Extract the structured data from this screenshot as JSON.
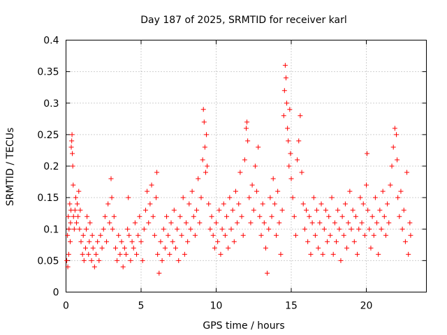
{
  "chart_data": {
    "type": "scatter",
    "title": "Day 187 of 2025, SRMTID for receiver karl",
    "xlabel": "GPS time / hours",
    "ylabel": "SRMTID / TECUs",
    "xlim": [
      0,
      24
    ],
    "ylim": [
      0,
      0.4
    ],
    "x_ticks": [
      0,
      5,
      10,
      15,
      20
    ],
    "x_tick_labels": [
      "0",
      "5",
      "10",
      "15",
      "20"
    ],
    "y_ticks": [
      0,
      0.05,
      0.1,
      0.15,
      0.2,
      0.25,
      0.3,
      0.35,
      0.4
    ],
    "y_tick_labels": [
      "0",
      "0.05",
      "0.1",
      "0.15",
      "0.2",
      "0.25",
      "0.3",
      "0.35",
      "0.4"
    ],
    "grid": true,
    "marker": "+",
    "color": "#ff0000",
    "series": [
      {
        "name": "SRMTID",
        "points": [
          [
            0.05,
            0.05
          ],
          [
            0.1,
            0.09
          ],
          [
            0.12,
            0.04
          ],
          [
            0.15,
            0.12
          ],
          [
            0.18,
            0.06
          ],
          [
            0.2,
            0.1
          ],
          [
            0.25,
            0.14
          ],
          [
            0.28,
            0.08
          ],
          [
            0.3,
            0.11
          ],
          [
            0.33,
            0.13
          ],
          [
            0.35,
            0.23
          ],
          [
            0.38,
            0.24
          ],
          [
            0.4,
            0.25
          ],
          [
            0.42,
            0.22
          ],
          [
            0.45,
            0.2
          ],
          [
            0.48,
            0.17
          ],
          [
            0.5,
            0.12
          ],
          [
            0.55,
            0.1
          ],
          [
            0.6,
            0.13
          ],
          [
            0.65,
            0.15
          ],
          [
            0.7,
            0.11
          ],
          [
            0.75,
            0.14
          ],
          [
            0.8,
            0.12
          ],
          [
            0.85,
            0.16
          ],
          [
            0.9,
            0.1
          ],
          [
            0.95,
            0.13
          ],
          [
            1.0,
            0.08
          ],
          [
            1.1,
            0.06
          ],
          [
            1.15,
            0.09
          ],
          [
            1.2,
            0.05
          ],
          [
            1.3,
            0.07
          ],
          [
            1.35,
            0.1
          ],
          [
            1.4,
            0.12
          ],
          [
            1.5,
            0.06
          ],
          [
            1.55,
            0.08
          ],
          [
            1.6,
            0.11
          ],
          [
            1.7,
            0.05
          ],
          [
            1.75,
            0.09
          ],
          [
            1.8,
            0.07
          ],
          [
            1.9,
            0.04
          ],
          [
            2.0,
            0.06
          ],
          [
            2.1,
            0.08
          ],
          [
            2.2,
            0.05
          ],
          [
            2.3,
            0.09
          ],
          [
            2.4,
            0.07
          ],
          [
            2.5,
            0.1
          ],
          [
            2.6,
            0.12
          ],
          [
            2.7,
            0.08
          ],
          [
            2.8,
            0.14
          ],
          [
            2.9,
            0.11
          ],
          [
            3.0,
            0.18
          ],
          [
            3.05,
            0.15
          ],
          [
            3.1,
            0.1
          ],
          [
            3.2,
            0.12
          ],
          [
            3.3,
            0.07
          ],
          [
            3.4,
            0.05
          ],
          [
            3.5,
            0.09
          ],
          [
            3.6,
            0.06
          ],
          [
            3.7,
            0.08
          ],
          [
            3.8,
            0.04
          ],
          [
            3.9,
            0.07
          ],
          [
            4.0,
            0.06
          ],
          [
            4.1,
            0.1
          ],
          [
            4.15,
            0.15
          ],
          [
            4.2,
            0.09
          ],
          [
            4.3,
            0.05
          ],
          [
            4.4,
            0.08
          ],
          [
            4.5,
            0.07
          ],
          [
            4.6,
            0.11
          ],
          [
            4.7,
            0.06
          ],
          [
            4.8,
            0.09
          ],
          [
            4.9,
            0.12
          ],
          [
            5.0,
            0.08
          ],
          [
            5.1,
            0.05
          ],
          [
            5.2,
            0.1
          ],
          [
            5.3,
            0.13
          ],
          [
            5.4,
            0.16
          ],
          [
            5.5,
            0.11
          ],
          [
            5.6,
            0.14
          ],
          [
            5.7,
            0.17
          ],
          [
            5.8,
            0.12
          ],
          [
            5.9,
            0.09
          ],
          [
            6.0,
            0.15
          ],
          [
            6.05,
            0.19
          ],
          [
            6.1,
            0.06
          ],
          [
            6.2,
            0.03
          ],
          [
            6.3,
            0.08
          ],
          [
            6.4,
            0.05
          ],
          [
            6.5,
            0.1
          ],
          [
            6.6,
            0.07
          ],
          [
            6.7,
            0.12
          ],
          [
            6.8,
            0.09
          ],
          [
            6.9,
            0.06
          ],
          [
            7.0,
            0.11
          ],
          [
            7.1,
            0.08
          ],
          [
            7.2,
            0.13
          ],
          [
            7.3,
            0.07
          ],
          [
            7.4,
            0.1
          ],
          [
            7.5,
            0.05
          ],
          [
            7.6,
            0.12
          ],
          [
            7.7,
            0.09
          ],
          [
            7.8,
            0.15
          ],
          [
            7.9,
            0.06
          ],
          [
            8.0,
            0.11
          ],
          [
            8.1,
            0.08
          ],
          [
            8.2,
            0.14
          ],
          [
            8.3,
            0.1
          ],
          [
            8.4,
            0.16
          ],
          [
            8.5,
            0.12
          ],
          [
            8.6,
            0.09
          ],
          [
            8.7,
            0.13
          ],
          [
            8.8,
            0.18
          ],
          [
            8.9,
            0.11
          ],
          [
            9.0,
            0.15
          ],
          [
            9.1,
            0.21
          ],
          [
            9.15,
            0.29
          ],
          [
            9.2,
            0.27
          ],
          [
            9.25,
            0.23
          ],
          [
            9.3,
            0.19
          ],
          [
            9.35,
            0.25
          ],
          [
            9.4,
            0.2
          ],
          [
            9.5,
            0.14
          ],
          [
            9.6,
            0.1
          ],
          [
            9.7,
            0.12
          ],
          [
            9.8,
            0.09
          ],
          [
            9.9,
            0.07
          ],
          [
            10.0,
            0.11
          ],
          [
            10.1,
            0.08
          ],
          [
            10.2,
            0.13
          ],
          [
            10.3,
            0.06
          ],
          [
            10.4,
            0.1
          ],
          [
            10.5,
            0.14
          ],
          [
            10.6,
            0.09
          ],
          [
            10.7,
            0.12
          ],
          [
            10.8,
            0.07
          ],
          [
            10.9,
            0.15
          ],
          [
            11.0,
            0.1
          ],
          [
            11.1,
            0.13
          ],
          [
            11.2,
            0.08
          ],
          [
            11.3,
            0.16
          ],
          [
            11.4,
            0.11
          ],
          [
            11.5,
            0.14
          ],
          [
            11.6,
            0.19
          ],
          [
            11.7,
            0.12
          ],
          [
            11.8,
            0.09
          ],
          [
            11.9,
            0.21
          ],
          [
            12.0,
            0.26
          ],
          [
            12.05,
            0.27
          ],
          [
            12.1,
            0.24
          ],
          [
            12.2,
            0.15
          ],
          [
            12.3,
            0.11
          ],
          [
            12.4,
            0.17
          ],
          [
            12.5,
            0.13
          ],
          [
            12.6,
            0.2
          ],
          [
            12.7,
            0.16
          ],
          [
            12.8,
            0.23
          ],
          [
            12.9,
            0.12
          ],
          [
            13.0,
            0.09
          ],
          [
            13.1,
            0.14
          ],
          [
            13.2,
            0.11
          ],
          [
            13.3,
            0.07
          ],
          [
            13.4,
            0.03
          ],
          [
            13.5,
            0.1
          ],
          [
            13.6,
            0.15
          ],
          [
            13.7,
            0.12
          ],
          [
            13.8,
            0.18
          ],
          [
            13.9,
            0.14
          ],
          [
            14.0,
            0.09
          ],
          [
            14.1,
            0.16
          ],
          [
            14.2,
            0.11
          ],
          [
            14.3,
            0.06
          ],
          [
            14.4,
            0.13
          ],
          [
            14.5,
            0.28
          ],
          [
            14.55,
            0.32
          ],
          [
            14.6,
            0.36
          ],
          [
            14.65,
            0.34
          ],
          [
            14.7,
            0.3
          ],
          [
            14.75,
            0.26
          ],
          [
            14.8,
            0.24
          ],
          [
            14.85,
            0.2
          ],
          [
            14.9,
            0.29
          ],
          [
            14.95,
            0.22
          ],
          [
            15.0,
            0.18
          ],
          [
            15.1,
            0.15
          ],
          [
            15.2,
            0.12
          ],
          [
            15.3,
            0.09
          ],
          [
            15.4,
            0.21
          ],
          [
            15.5,
            0.24
          ],
          [
            15.6,
            0.28
          ],
          [
            15.7,
            0.19
          ],
          [
            15.8,
            0.14
          ],
          [
            15.9,
            0.1
          ],
          [
            16.0,
            0.13
          ],
          [
            16.1,
            0.08
          ],
          [
            16.2,
            0.12
          ],
          [
            16.3,
            0.06
          ],
          [
            16.4,
            0.11
          ],
          [
            16.5,
            0.15
          ],
          [
            16.6,
            0.09
          ],
          [
            16.7,
            0.13
          ],
          [
            16.8,
            0.07
          ],
          [
            16.9,
            0.11
          ],
          [
            17.0,
            0.14
          ],
          [
            17.1,
            0.06
          ],
          [
            17.2,
            0.1
          ],
          [
            17.3,
            0.13
          ],
          [
            17.4,
            0.08
          ],
          [
            17.5,
            0.12
          ],
          [
            17.6,
            0.09
          ],
          [
            17.7,
            0.15
          ],
          [
            17.8,
            0.06
          ],
          [
            17.9,
            0.11
          ],
          [
            18.0,
            0.08
          ],
          [
            18.1,
            0.13
          ],
          [
            18.2,
            0.1
          ],
          [
            18.3,
            0.05
          ],
          [
            18.4,
            0.12
          ],
          [
            18.5,
            0.09
          ],
          [
            18.6,
            0.14
          ],
          [
            18.7,
            0.07
          ],
          [
            18.8,
            0.11
          ],
          [
            18.9,
            0.16
          ],
          [
            19.0,
            0.1
          ],
          [
            19.1,
            0.13
          ],
          [
            19.2,
            0.08
          ],
          [
            19.3,
            0.12
          ],
          [
            19.4,
            0.06
          ],
          [
            19.5,
            0.1
          ],
          [
            19.6,
            0.15
          ],
          [
            19.7,
            0.11
          ],
          [
            19.8,
            0.14
          ],
          [
            19.9,
            0.09
          ],
          [
            20.0,
            0.17
          ],
          [
            20.05,
            0.22
          ],
          [
            20.1,
            0.13
          ],
          [
            20.2,
            0.1
          ],
          [
            20.3,
            0.07
          ],
          [
            20.4,
            0.12
          ],
          [
            20.5,
            0.09
          ],
          [
            20.6,
            0.15
          ],
          [
            20.7,
            0.11
          ],
          [
            20.8,
            0.06
          ],
          [
            20.9,
            0.13
          ],
          [
            21.0,
            0.1
          ],
          [
            21.1,
            0.16
          ],
          [
            21.2,
            0.12
          ],
          [
            21.3,
            0.09
          ],
          [
            21.4,
            0.14
          ],
          [
            21.5,
            0.11
          ],
          [
            21.6,
            0.17
          ],
          [
            21.7,
            0.2
          ],
          [
            21.8,
            0.23
          ],
          [
            21.9,
            0.26
          ],
          [
            22.0,
            0.25
          ],
          [
            22.05,
            0.21
          ],
          [
            22.1,
            0.15
          ],
          [
            22.2,
            0.12
          ],
          [
            22.3,
            0.16
          ],
          [
            22.4,
            0.1
          ],
          [
            22.5,
            0.13
          ],
          [
            22.6,
            0.08
          ],
          [
            22.7,
            0.19
          ],
          [
            22.8,
            0.06
          ],
          [
            22.9,
            0.11
          ],
          [
            22.95,
            0.09
          ]
        ]
      }
    ]
  }
}
